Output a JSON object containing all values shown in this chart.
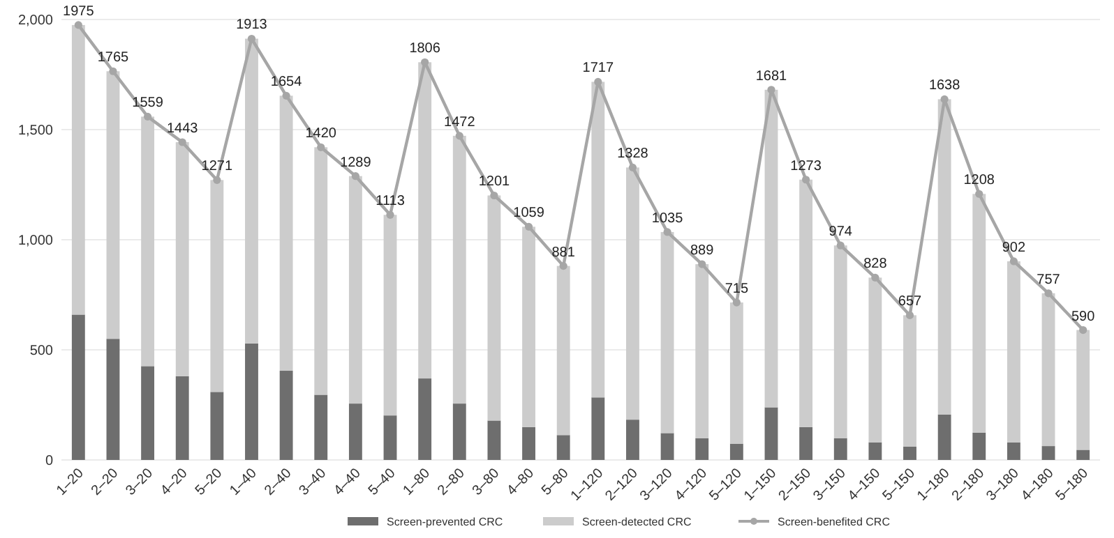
{
  "chart_data": {
    "type": "bar",
    "stacked": true,
    "categories": [
      "1–20",
      "2–20",
      "3–20",
      "4–20",
      "5–20",
      "1–40",
      "2–40",
      "3–40",
      "4–40",
      "5–40",
      "1–80",
      "2–80",
      "3–80",
      "4–80",
      "5–80",
      "1–120",
      "2–120",
      "3–120",
      "4–120",
      "5–120",
      "1–150",
      "2–150",
      "3–150",
      "4–150",
      "5–150",
      "1–180",
      "2–180",
      "3–180",
      "4–180",
      "5–180"
    ],
    "series": [
      {
        "name": "Screen-prevented CRC",
        "color": "#6e6e6e",
        "values": [
          660,
          550,
          426,
          380,
          309,
          529,
          405,
          296,
          256,
          202,
          370,
          256,
          179,
          149,
          113,
          284,
          183,
          122,
          99,
          74,
          239,
          149,
          99,
          80,
          61,
          206,
          124,
          80,
          63,
          46
        ]
      },
      {
        "name": "Screen-detected CRC",
        "color": "#cccccc",
        "values": [
          1315,
          1215,
          1133,
          1063,
          962,
          1384,
          1249,
          1124,
          1033,
          911,
          1436,
          1216,
          1022,
          910,
          768,
          1433,
          1145,
          913,
          790,
          641,
          1442,
          1124,
          875,
          748,
          596,
          1432,
          1084,
          822,
          694,
          544
        ]
      },
      {
        "name": "Screen-benefited CRC",
        "type": "line",
        "color": "#a6a6a6",
        "marker": "circle",
        "values": [
          1975,
          1765,
          1559,
          1443,
          1271,
          1913,
          1654,
          1420,
          1289,
          1113,
          1806,
          1472,
          1201,
          1059,
          881,
          1717,
          1328,
          1035,
          889,
          715,
          1681,
          1273,
          974,
          828,
          657,
          1638,
          1208,
          902,
          757,
          590
        ],
        "value_labels": [
          "1975",
          "1765",
          "1559",
          "1443",
          "1271",
          "1913",
          "1654",
          "1420",
          "1289",
          "1113",
          "1806",
          "1472",
          "1201",
          "1059",
          "881",
          "1717",
          "1328",
          "1035",
          "889",
          "715",
          "1681",
          "1273",
          "974",
          "828",
          "657",
          "1638",
          "1208",
          "902",
          "757",
          "590"
        ]
      }
    ],
    "ylim": [
      0,
      2000
    ],
    "yticks": [
      0,
      {
        "value": 500,
        "label": "500"
      },
      {
        "value": 1000,
        "label": "1,000"
      },
      {
        "value": 1500,
        "label": "1,500"
      },
      {
        "value": 2000,
        "label": "2,000"
      }
    ],
    "grid": "y",
    "legend": "bottom"
  }
}
